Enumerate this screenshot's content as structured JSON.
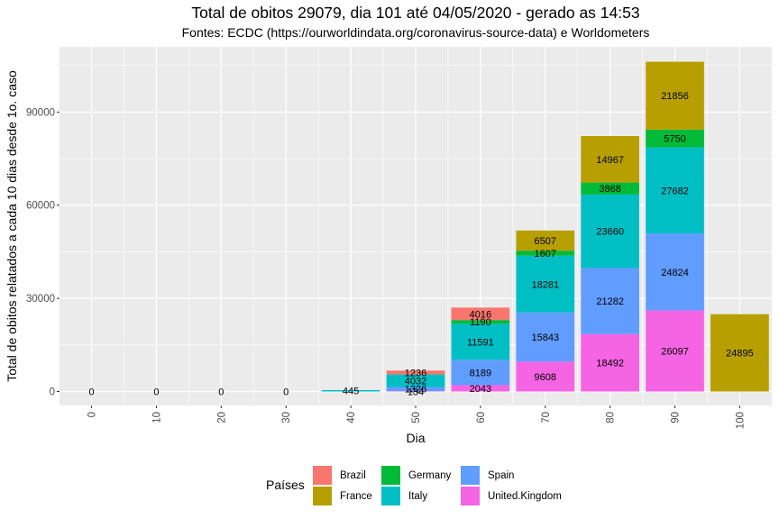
{
  "chart_data": {
    "type": "bar",
    "stacked": true,
    "title": "Total de obitos 29079, dia 101 até 04/05/2020 - gerado as 14:53",
    "subtitle": "Fontes: ECDC (https://ourworldindata.org/coronavirus-source-data) e Worldometers",
    "xlabel": "Dia",
    "ylabel": "Total de obitos relatados a cada 10 dias desde 1o. caso",
    "categories": [
      "0",
      "10",
      "20",
      "30",
      "40",
      "50",
      "60",
      "70",
      "80",
      "90",
      "100"
    ],
    "x": [
      0,
      10,
      20,
      30,
      40,
      50,
      60,
      70,
      80,
      90,
      100
    ],
    "y_ticks": [
      0,
      30000,
      60000,
      90000
    ],
    "y_tick_labels": [
      "0",
      "30000",
      "60000",
      "90000"
    ],
    "ylim": [
      -4500,
      111000
    ],
    "grid": true,
    "legend_title": "Países",
    "legend_position": "bottom",
    "stack_order_bottom_to_top": [
      "United.Kingdom",
      "Spain",
      "Italy",
      "Germany",
      "France",
      "Brazil"
    ],
    "series": [
      {
        "name": "Brazil",
        "color": "#F8766D",
        "values": [
          0,
          0,
          0,
          0,
          0,
          1236,
          4016,
          0,
          0,
          0,
          0
        ],
        "labels": [
          "",
          "",
          "",
          "",
          "",
          "1236",
          "4016",
          "",
          "",
          "",
          ""
        ]
      },
      {
        "name": "France",
        "color": "#B79F00",
        "values": [
          0,
          0,
          0,
          0,
          0,
          0,
          0,
          6507,
          14967,
          21856,
          24895
        ],
        "labels": [
          "0",
          "0",
          "0",
          "0",
          "",
          "",
          "",
          "6507",
          "14967",
          "21856",
          "24895"
        ]
      },
      {
        "name": "Germany",
        "color": "#00BA38",
        "values": [
          0,
          0,
          0,
          0,
          0,
          0,
          1190,
          1607,
          3868,
          5750,
          0
        ],
        "labels": [
          "",
          "",
          "",
          "",
          "",
          "",
          "1190",
          "1607",
          "3868",
          "5750",
          ""
        ]
      },
      {
        "name": "Italy",
        "color": "#00BFC4",
        "values": [
          0,
          0,
          0,
          0,
          445,
          4032,
          11591,
          18281,
          23660,
          27682,
          0
        ],
        "labels": [
          "",
          "",
          "",
          "",
          "445",
          "4032",
          "11591",
          "18281",
          "23660",
          "27682",
          ""
        ]
      },
      {
        "name": "Spain",
        "color": "#619CFF",
        "values": [
          0,
          0,
          0,
          0,
          0,
          1326,
          8189,
          15843,
          21282,
          24824,
          0
        ],
        "labels": [
          "",
          "",
          "",
          "",
          "",
          "1326",
          "8189",
          "15843",
          "21282",
          "24824",
          ""
        ]
      },
      {
        "name": "United.Kingdom",
        "color": "#F564E3",
        "values": [
          0,
          0,
          0,
          0,
          0,
          134,
          2043,
          9608,
          18492,
          26097,
          0
        ],
        "labels": [
          "",
          "",
          "",
          "",
          "",
          "134",
          "2043",
          "9608",
          "18492",
          "26097",
          ""
        ]
      }
    ]
  }
}
